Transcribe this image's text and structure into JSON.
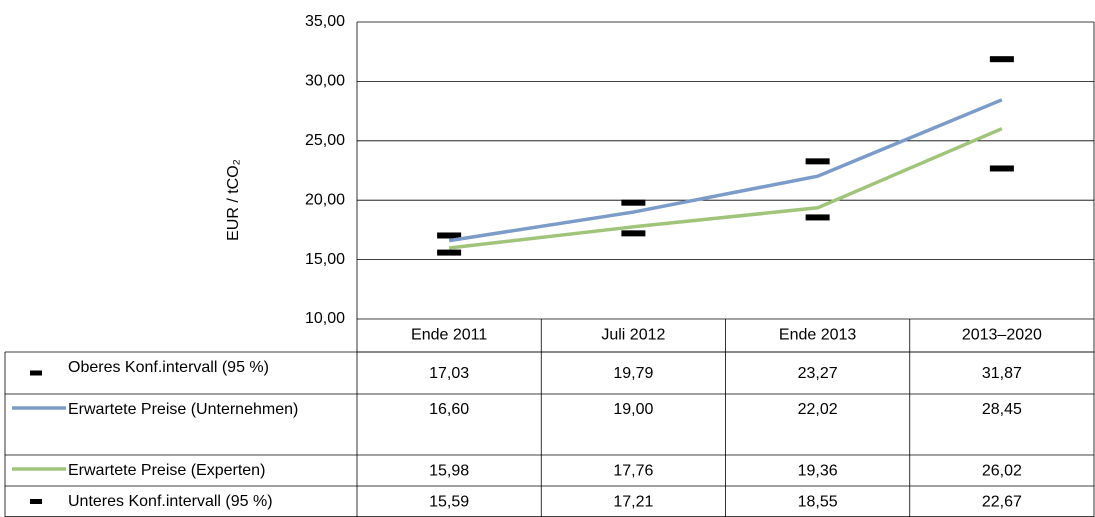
{
  "chart_data": {
    "type": "line",
    "ylabel": "EUR / tCO₂",
    "categories": [
      "Ende 2011",
      "Juli 2012",
      "Ende 2013",
      "2013–2020"
    ],
    "ylim": [
      10,
      35
    ],
    "yticks": [
      {
        "value": 10,
        "label": "10,00"
      },
      {
        "value": 15,
        "label": "15,00"
      },
      {
        "value": 20,
        "label": "20,00"
      },
      {
        "value": 25,
        "label": "25,00"
      },
      {
        "value": 30,
        "label": "30,00"
      },
      {
        "value": 35,
        "label": "35,00"
      }
    ],
    "grid": true,
    "series": [
      {
        "name": "Oberes Konf.intervall (95 %)",
        "style": "dash",
        "color": "#000000",
        "values": [
          17.03,
          19.79,
          23.27,
          31.87
        ],
        "value_labels": [
          "17,03",
          "19,79",
          "23,27",
          "31,87"
        ]
      },
      {
        "name": "Erwartete Preise (Unternehmen)",
        "style": "line",
        "color": "#7b9bc9",
        "values": [
          16.6,
          19.0,
          22.02,
          28.45
        ],
        "value_labels": [
          "16,60",
          "19,00",
          "22,02",
          "28,45"
        ]
      },
      {
        "name": "Erwartete Preise (Experten)",
        "style": "line",
        "color": "#9fc47a",
        "values": [
          15.98,
          17.76,
          19.36,
          26.02
        ],
        "value_labels": [
          "15,98",
          "17,76",
          "19,36",
          "26,02"
        ]
      },
      {
        "name": "Unteres Konf.intervall (95 %)",
        "style": "dash",
        "color": "#000000",
        "values": [
          15.59,
          17.21,
          18.55,
          22.67
        ],
        "value_labels": [
          "15,59",
          "17,21",
          "18,55",
          "22,67"
        ]
      }
    ]
  }
}
